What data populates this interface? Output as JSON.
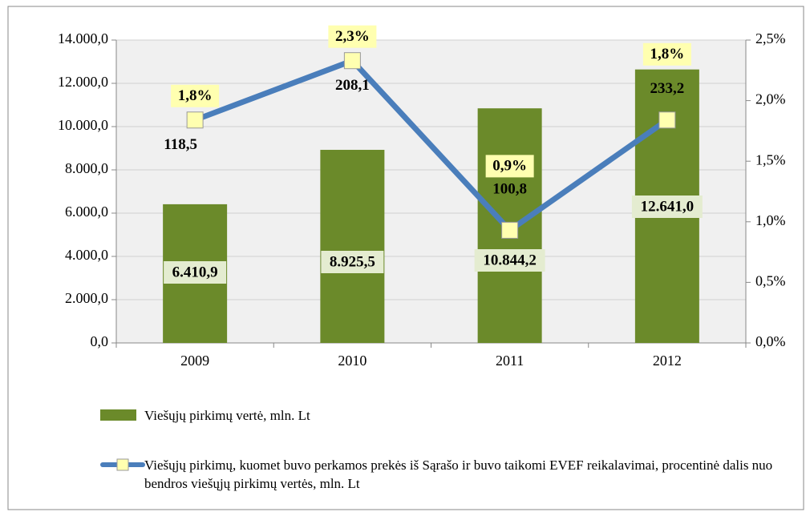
{
  "chart_data": {
    "type": "bar-line",
    "categories": [
      "2009",
      "2010",
      "2011",
      "2012"
    ],
    "series": [
      {
        "name": "Viešųjų pirkimų vertė, mln. Lt",
        "type": "bar",
        "color": "#6b8a2a",
        "values": [
          6410.9,
          8925.5,
          10844.2,
          12641.0
        ],
        "value_labels": [
          "6.410,9",
          "8.925,5",
          "10.844,2",
          "12.641,0"
        ]
      },
      {
        "name": "Viešųjų pirkimų, kuomet buvo perkamos prekės iš Sąrašo ir buvo taikomi EVEF reikalavimai, procentinė dalis nuo bendros viešųjų pirkimų vertės, mln. Lt",
        "type": "line",
        "axis": "y2",
        "color": "#4a7ebb",
        "marker_color": "#ffffb0",
        "values": [
          1.84,
          2.33,
          0.93,
          1.84
        ],
        "value_labels": [
          "1,8%",
          "2,3%",
          "0,9%",
          "1,8%"
        ],
        "amount_labels": [
          "118,5",
          "208,1",
          "100,8",
          "233,2"
        ]
      }
    ],
    "ylim": [
      0,
      14000
    ],
    "yticks": [
      {
        "value": 0,
        "label": "0,0"
      },
      {
        "value": 2000,
        "label": "2.000,0"
      },
      {
        "value": 4000,
        "label": "4.000,0"
      },
      {
        "value": 6000,
        "label": "6.000,0"
      },
      {
        "value": 8000,
        "label": "8.000,0"
      },
      {
        "value": 10000,
        "label": "10.000,0"
      },
      {
        "value": 12000,
        "label": "12.000,0"
      },
      {
        "value": 14000,
        "label": "14.000,0"
      }
    ],
    "y2lim": [
      0,
      2.5
    ],
    "y2ticks": [
      {
        "value": 0,
        "label": "0,0%"
      },
      {
        "value": 0.5,
        "label": "0,5%"
      },
      {
        "value": 1,
        "label": "1,0%"
      },
      {
        "value": 1.5,
        "label": "1,5%"
      },
      {
        "value": 2,
        "label": "2,0%"
      },
      {
        "value": 2.5,
        "label": "2,5%"
      }
    ],
    "grid": true
  }
}
